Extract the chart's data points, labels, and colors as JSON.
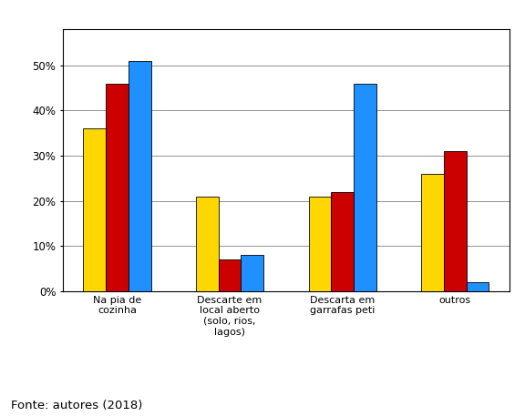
{
  "categories": [
    "Na pia de\ncozinha",
    "Descarte em\nlocal aberto\n(solo, rios,\nlagos)",
    "Descarta em\ngarrafas peti",
    "outros"
  ],
  "series": {
    "Bairro Centro": [
      0.36,
      0.21,
      0.21,
      0.26
    ],
    "Bairro Pereiros": [
      0.46,
      0.07,
      0.22,
      0.31
    ],
    "Alunos Universitários": [
      0.51,
      0.08,
      0.46,
      0.02
    ]
  },
  "colors": {
    "Bairro Centro": "#FFD700",
    "Bairro Pereiros": "#CC0000",
    "Alunos Universitários": "#1E90FF"
  },
  "ylim": [
    0,
    0.58
  ],
  "yticks": [
    0.0,
    0.1,
    0.2,
    0.3,
    0.4,
    0.5
  ],
  "ytick_labels": [
    "0%",
    "10%",
    "20%",
    "30%",
    "40%",
    "50%"
  ],
  "fonte": "Fonte: autores (2018)",
  "background_color": "#ffffff",
  "bar_edge_color": "#000000",
  "grid_color": "#808080"
}
